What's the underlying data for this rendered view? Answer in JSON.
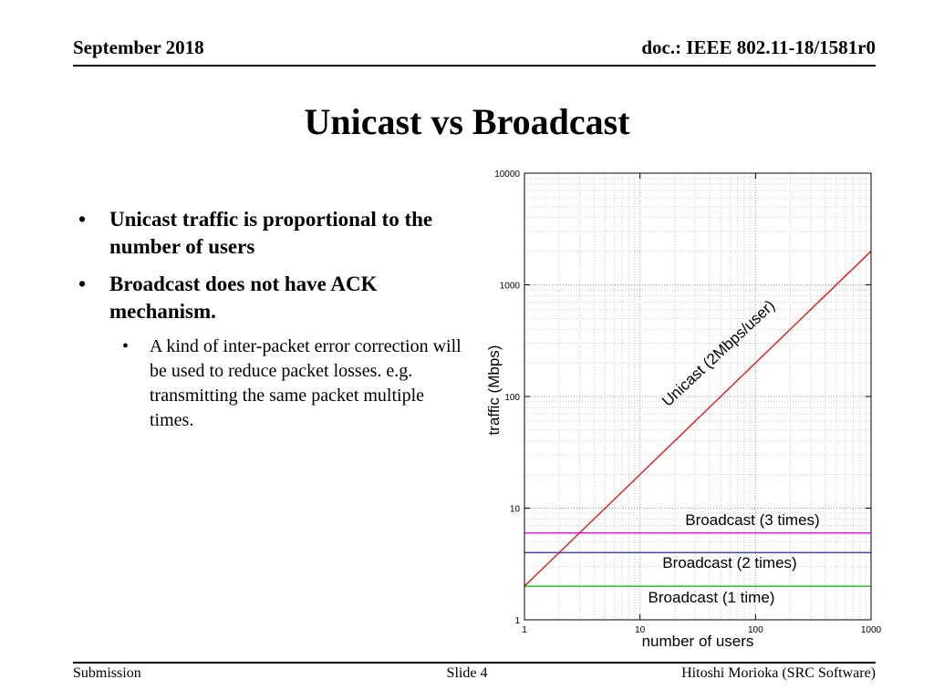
{
  "header": {
    "date": "September 2018",
    "doc": "doc.: IEEE 802.11-18/1581r0"
  },
  "title": "Unicast vs Broadcast",
  "bullets": {
    "marker": "•",
    "item1": "Unicast traffic is proportional to the number of users",
    "item2": "Broadcast does not have ACK mechanism.",
    "item2_sub1": "A kind of inter-packet error correction will be used to reduce packet losses. e.g. transmitting the same packet multiple times."
  },
  "footer": {
    "left": "Submission",
    "center": "Slide 4",
    "right": "Hitoshi Morioka (SRC Software)"
  },
  "chart_data": {
    "type": "line",
    "title": "",
    "xlabel": "number of users",
    "ylabel": "traffic (Mbps)",
    "x_scale": "log",
    "y_scale": "log",
    "xlim": [
      1,
      1000
    ],
    "ylim": [
      1,
      10000
    ],
    "x_ticks": [
      1,
      10,
      100,
      1000
    ],
    "y_ticks": [
      1,
      10,
      100,
      1000,
      10000
    ],
    "grid": true,
    "legend_position": "inline-annotations",
    "series": [
      {
        "name": "Unicast (2Mbps/user)",
        "color": "#ff0000",
        "points": [
          [
            1,
            2
          ],
          [
            1000,
            2000
          ]
        ]
      },
      {
        "name": "Broadcast (3 times)",
        "color": "#ff00ff",
        "points": [
          [
            1,
            6
          ],
          [
            1000,
            6
          ]
        ]
      },
      {
        "name": "Broadcast (2 times)",
        "color": "#2222dd",
        "points": [
          [
            1,
            4
          ],
          [
            1000,
            4
          ]
        ]
      },
      {
        "name": "Broadcast (1 time)",
        "color": "#00b400",
        "points": [
          [
            1,
            2
          ],
          [
            1000,
            2
          ]
        ]
      }
    ]
  }
}
